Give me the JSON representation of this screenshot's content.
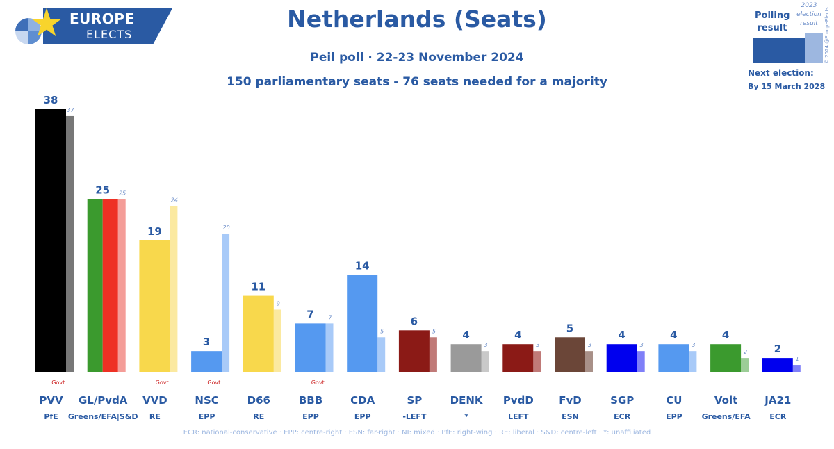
{
  "branding": {
    "line1": "EUROPE",
    "line2": "ELECTS",
    "copyright": "© 2024 @EuropeElects"
  },
  "header": {
    "title": "Netherlands (Seats)",
    "subtitle": "Peil poll · 22-23 November 2024",
    "note": "150 parliamentary seats - 76 seats needed for a majority"
  },
  "legend": {
    "polling": "Polling result",
    "previous": "2023 election result",
    "next_election_label": "Next election:",
    "next_election_date": "By 15 March 2028"
  },
  "footer": "ECR: national-conservative · EPP: centre-right · ESN: far-right · NI: mixed · PfE: right-wing · RE: liberal · S&D: centre-left · *: unaffiliated",
  "chart_data": {
    "type": "bar",
    "ylim": [
      0,
      40
    ],
    "categories": [
      "PVV",
      "GL/PvdA",
      "VVD",
      "NSC",
      "D66",
      "BBB",
      "CDA",
      "SP",
      "DENK",
      "PvdD",
      "FvD",
      "SGP",
      "CU",
      "Volt",
      "JA21"
    ],
    "groups": [
      "PfE",
      "Greens/EFA|S&D",
      "RE",
      "EPP",
      "RE",
      "EPP",
      "EPP",
      "-LEFT",
      "*",
      "LEFT",
      "ESN",
      "ECR",
      "EPP",
      "Greens/EFA",
      "ECR"
    ],
    "series": [
      {
        "name": "Polling result",
        "values": [
          38,
          25,
          19,
          3,
          11,
          7,
          14,
          6,
          4,
          4,
          5,
          4,
          4,
          4,
          2
        ]
      },
      {
        "name": "2023 election result",
        "values": [
          37,
          25,
          24,
          20,
          9,
          7,
          5,
          5,
          3,
          3,
          3,
          3,
          3,
          2,
          1
        ]
      }
    ],
    "govt": [
      true,
      false,
      true,
      true,
      false,
      true,
      false,
      false,
      false,
      false,
      false,
      false,
      false,
      false,
      false
    ],
    "govt_label": "Govt.",
    "colors": [
      "#000000",
      "#3b9a2e",
      "#f8d84c",
      "#5599f0",
      "#f8d84c",
      "#5599f0",
      "#5599f0",
      "#8b1a16",
      "#9a9a9a",
      "#8b1a16",
      "#6b4638",
      "#0000ee",
      "#5599f0",
      "#3b9a2e",
      "#0000ee"
    ],
    "prev_colors": [
      "#777777",
      "#f49d98",
      "#fbe9a0",
      "#a8caf8",
      "#fbe9a0",
      "#a8caf8",
      "#a8caf8",
      "#c07a78",
      "#c9c9c9",
      "#c07a78",
      "#a89088",
      "#7f7ff8",
      "#a8caf8",
      "#9ccd97",
      "#7f7ff8"
    ],
    "split_colors": {
      "GL/PvdA": [
        "#3b9a2e",
        "#ee3124"
      ]
    }
  }
}
